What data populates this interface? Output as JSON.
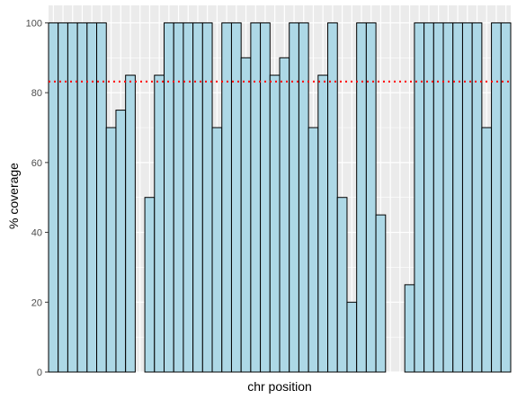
{
  "chart_data": {
    "type": "bar",
    "title": "",
    "xlabel": "chr position",
    "ylabel": "% coverage",
    "ylim": [
      0,
      105
    ],
    "yticks": [
      0,
      20,
      40,
      60,
      80,
      100
    ],
    "grid": true,
    "legend": "none",
    "values": [
      100,
      100,
      100,
      100,
      100,
      100,
      70,
      75,
      85,
      0,
      50,
      85,
      100,
      100,
      100,
      100,
      100,
      70,
      100,
      100,
      90,
      100,
      100,
      85,
      90,
      100,
      100,
      70,
      85,
      100,
      50,
      20,
      100,
      100,
      45,
      0,
      0,
      25,
      100,
      100,
      100,
      100,
      100,
      100,
      100,
      70,
      100,
      100
    ],
    "reference_line": {
      "value": 83.2,
      "style": "dotted"
    },
    "colors": {
      "bar_fill": "#add8e6",
      "bar_stroke": "#000000",
      "panel_bg": "#ebebeb",
      "grid": "#ffffff",
      "reference_line": "#ff0000"
    }
  }
}
